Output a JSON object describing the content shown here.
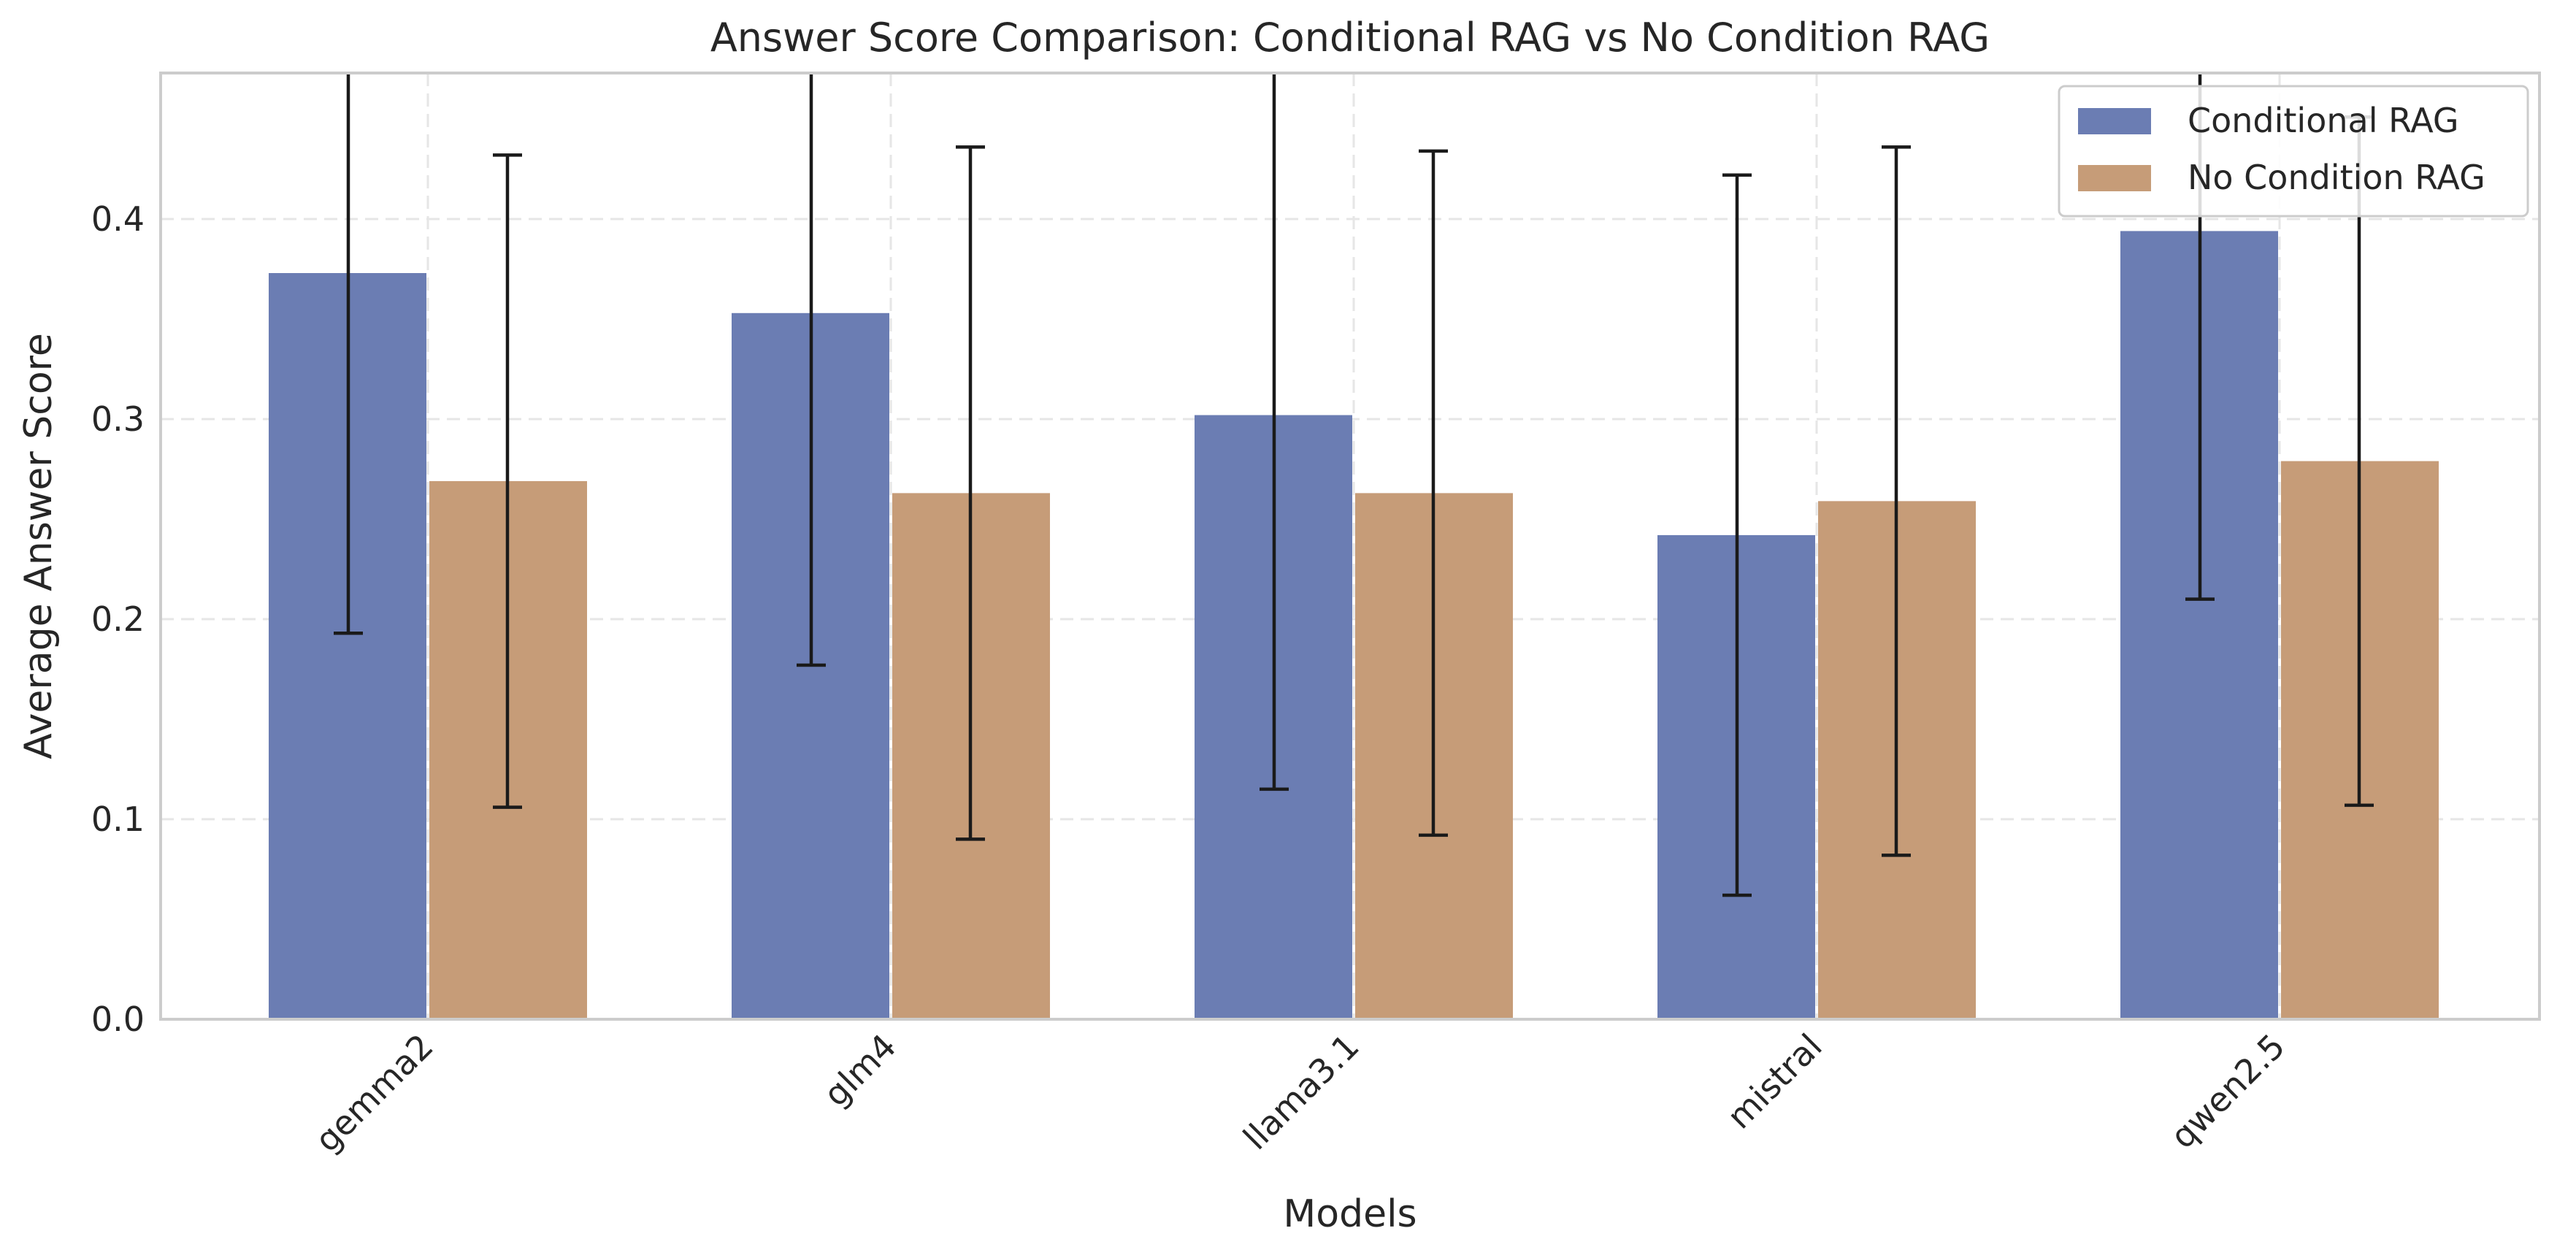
{
  "chart_data": {
    "type": "bar",
    "title": "Answer Score Comparison: Conditional RAG vs No Condition RAG",
    "xlabel": "Models",
    "ylabel": "Average Answer Score",
    "categories": [
      "gemma2",
      "glm4",
      "llama3.1",
      "mistral",
      "qwen2.5"
    ],
    "series": [
      {
        "name": "Conditional RAG",
        "color": "#6b7db3",
        "values": [
          0.373,
          0.353,
          0.302,
          0.242,
          0.394
        ],
        "error": [
          0.18,
          0.176,
          0.187,
          0.18,
          0.184
        ]
      },
      {
        "name": "No Condition RAG",
        "color": "#c69c78",
        "values": [
          0.269,
          0.263,
          0.263,
          0.259,
          0.279
        ],
        "error": [
          0.163,
          0.173,
          0.171,
          0.177,
          0.172
        ]
      }
    ],
    "ylim": [
      0,
      0.473
    ],
    "yticks": [
      "0.0",
      "0.1",
      "0.2",
      "0.3",
      "0.4"
    ],
    "grid": true,
    "legend_position": "top-right"
  }
}
